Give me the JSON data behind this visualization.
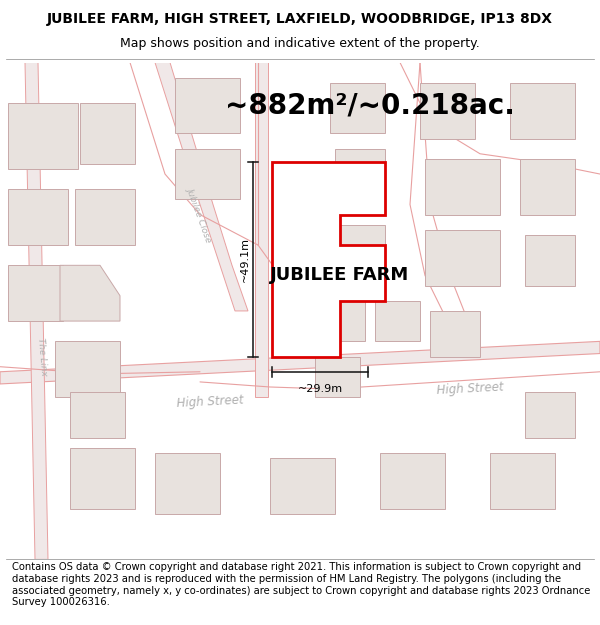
{
  "title": "JUBILEE FARM, HIGH STREET, LAXFIELD, WOODBRIDGE, IP13 8DX",
  "subtitle": "Map shows position and indicative extent of the property.",
  "area_text": "~882m²/~0.218ac.",
  "label": "JUBILEE FARM",
  "width_label": "~29.9m",
  "height_label": "~49.1m",
  "footer": "Contains OS data © Crown copyright and database right 2021. This information is subject to Crown copyright and database rights 2023 and is reproduced with the permission of HM Land Registry. The polygons (including the associated geometry, namely x, y co-ordinates) are subject to Crown copyright and database rights 2023 Ordnance Survey 100026316.",
  "bg_color": "#f7f3f1",
  "plot_outline_color": "#dd0000",
  "road_outline_color": "#e8a0a0",
  "building_fill": "#e8e2de",
  "building_outline": "#c8a8a8",
  "dim_line_color": "#111111",
  "road_label_color": "#b0b0b0",
  "title_fontsize": 10,
  "subtitle_fontsize": 9,
  "area_fontsize": 20,
  "label_fontsize": 13,
  "dim_fontsize": 8,
  "footer_fontsize": 7.2
}
